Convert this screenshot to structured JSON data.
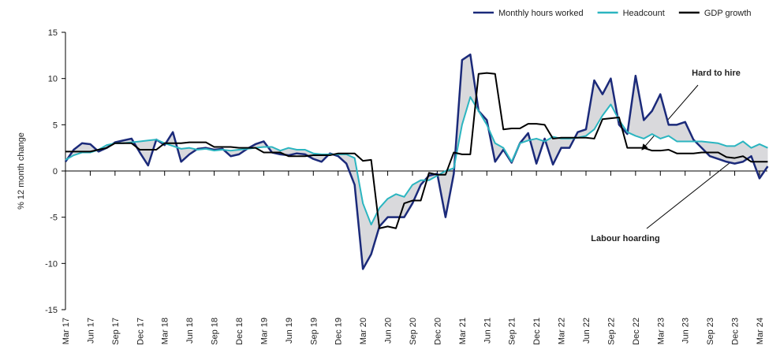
{
  "chart_data": {
    "type": "line",
    "ylabel": "% 12 month change",
    "categories": [
      "Mar 17",
      null,
      null,
      "Jun 17",
      null,
      null,
      "Sep 17",
      null,
      null,
      "Dec 17",
      null,
      null,
      "Mar 18",
      null,
      null,
      "Jun 18",
      null,
      null,
      "Sep 18",
      null,
      null,
      "Dec 18",
      null,
      null,
      "Mar 19",
      null,
      null,
      "Jun 19",
      null,
      null,
      "Sep 19",
      null,
      null,
      "Dec 19",
      null,
      null,
      "Mar 20",
      null,
      null,
      "Jun 20",
      null,
      null,
      "Sep 20",
      null,
      null,
      "Dec 20",
      null,
      null,
      "Mar 21",
      null,
      null,
      "Jun 21",
      null,
      null,
      "Sep 21",
      null,
      null,
      "Dec 21",
      null,
      null,
      "Mar 22",
      null,
      null,
      "Jun 22",
      null,
      null,
      "Sep 22",
      null,
      null,
      "Dec 22",
      null,
      null,
      "Mar 23",
      null,
      null,
      "Jun 23",
      null,
      null,
      "Sep 23",
      null,
      null,
      "Dec 23",
      null,
      null,
      "Mar 24",
      null
    ],
    "series": [
      {
        "name": "Monthly hours worked",
        "color": "#1b2a7a",
        "width": 2.5,
        "values": [
          1.0,
          2.3,
          3.0,
          2.9,
          2.1,
          2.5,
          3.1,
          3.3,
          3.5,
          2.0,
          0.6,
          3.4,
          2.8,
          4.2,
          1.0,
          1.8,
          2.4,
          2.5,
          2.3,
          2.4,
          1.6,
          1.8,
          2.4,
          2.9,
          3.2,
          2.0,
          1.8,
          1.7,
          1.9,
          1.8,
          1.3,
          1.0,
          1.9,
          1.6,
          0.8,
          -1.5,
          -10.6,
          -9.0,
          -6.0,
          -5.0,
          -5.0,
          -5.0,
          -3.5,
          -1.5,
          -0.5,
          -0.3,
          -5.0,
          -0.3,
          12.0,
          12.6,
          6.5,
          5.5,
          1.0,
          2.3,
          0.9,
          3.0,
          4.1,
          0.8,
          3.5,
          0.7,
          2.5,
          2.5,
          4.2,
          4.5,
          9.8,
          8.3,
          10.0,
          5.0,
          4.0,
          10.3,
          5.5,
          6.5,
          8.3,
          5.0,
          5.0,
          5.3,
          3.4,
          2.5,
          1.6,
          1.3,
          1.0,
          0.8,
          1.0,
          1.6,
          -0.8,
          0.5
        ]
      },
      {
        "name": "Headcount",
        "color": "#2bb5c0",
        "width": 2,
        "values": [
          1.2,
          1.7,
          2.0,
          2.0,
          2.3,
          2.8,
          3.0,
          3.0,
          3.1,
          3.2,
          3.3,
          3.4,
          3.0,
          2.7,
          2.4,
          2.5,
          2.3,
          2.4,
          2.2,
          2.3,
          2.2,
          2.3,
          2.4,
          2.5,
          2.6,
          2.6,
          2.2,
          2.5,
          2.3,
          2.3,
          1.9,
          1.8,
          1.8,
          1.8,
          1.8,
          1.4,
          -3.5,
          -5.8,
          -4.0,
          -3.0,
          -2.5,
          -2.8,
          -1.5,
          -1.0,
          -1.0,
          -0.5,
          0,
          0.3,
          5.0,
          8.0,
          6.5,
          5.0,
          3.0,
          2.5,
          1.0,
          3.0,
          3.3,
          3.5,
          3.2,
          3.7,
          3.5,
          3.5,
          3.6,
          3.8,
          4.5,
          6.0,
          7.2,
          5.5,
          4.2,
          3.8,
          3.5,
          4.0,
          3.5,
          3.8,
          3.2,
          3.2,
          3.2,
          3.2,
          3.1,
          3.0,
          2.7,
          2.7,
          3.2,
          2.5,
          2.9,
          2.5
        ]
      },
      {
        "name": "GDP growth",
        "color": "#000000",
        "width": 2,
        "values": [
          2.1,
          2.1,
          2.1,
          2.1,
          2.3,
          2.5,
          3.0,
          3.0,
          3.0,
          2.3,
          2.3,
          2.3,
          3.0,
          3.0,
          3.0,
          3.1,
          3.1,
          3.1,
          2.6,
          2.6,
          2.6,
          2.5,
          2.5,
          2.5,
          2.0,
          2.0,
          2.0,
          1.6,
          1.6,
          1.6,
          1.7,
          1.7,
          1.7,
          1.9,
          1.9,
          1.9,
          1.1,
          1.2,
          -6.2,
          -6.0,
          -6.2,
          -3.5,
          -3.2,
          -3.2,
          -0.2,
          -0.4,
          -0.4,
          2.0,
          1.8,
          1.8,
          10.5,
          10.6,
          10.5,
          4.5,
          4.6,
          4.6,
          5.1,
          5.1,
          5.0,
          3.5,
          3.6,
          3.6,
          3.6,
          3.6,
          3.5,
          5.6,
          5.7,
          5.8,
          2.5,
          2.5,
          2.5,
          2.2,
          2.2,
          2.3,
          1.9,
          1.9,
          1.9,
          2.0,
          2.0,
          2.0,
          1.5,
          1.4,
          1.6,
          1.0,
          1.0,
          1.0
        ]
      }
    ],
    "ylim": [
      -15,
      15
    ],
    "yticks": [
      -15,
      -10,
      -5,
      0,
      5,
      10,
      15
    ],
    "shade_color": "#d9d9dc",
    "annotations": [
      "Hard to hire",
      "Labour hoarding"
    ]
  }
}
